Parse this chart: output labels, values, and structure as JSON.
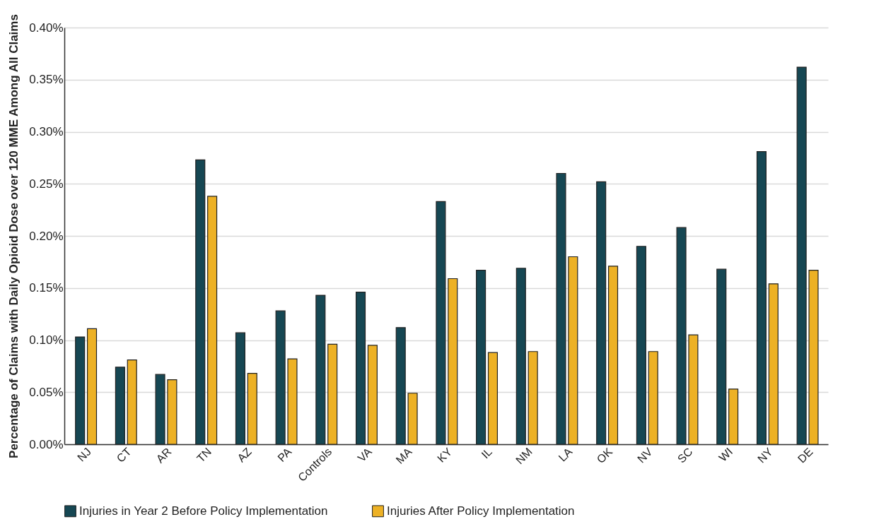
{
  "chart_data": {
    "type": "bar",
    "ylabel": "Percentage of Claims with Daily Opioid Dose over 120 MME Among All Claims",
    "categories": [
      "NJ",
      "CT",
      "AR",
      "TN",
      "AZ",
      "PA",
      "Controls",
      "VA",
      "MA",
      "KY",
      "IL",
      "NM",
      "LA",
      "OK",
      "NV",
      "SC",
      "WI",
      "NY",
      "DE"
    ],
    "series": [
      {
        "name": "Injuries in Year 2 Before Policy Implementation",
        "color": "#164753",
        "values": [
          0.103,
          0.074,
          0.067,
          0.273,
          0.107,
          0.128,
          0.143,
          0.146,
          0.112,
          0.233,
          0.167,
          0.169,
          0.26,
          0.252,
          0.19,
          0.208,
          0.168,
          0.281,
          0.362
        ]
      },
      {
        "name": "Injuries After Policy Implementation",
        "color": "#edb125",
        "values": [
          0.111,
          0.081,
          0.062,
          0.238,
          0.068,
          0.082,
          0.096,
          0.095,
          0.049,
          0.159,
          0.088,
          0.089,
          0.18,
          0.171,
          0.089,
          0.105,
          0.053,
          0.154,
          0.167
        ]
      }
    ],
    "ylim": [
      0,
      0.4
    ],
    "yticks": [
      {
        "value": 0,
        "label": "0.00%"
      },
      {
        "value": 0.05,
        "label": "0.05%"
      },
      {
        "value": 0.1,
        "label": "0.10%"
      },
      {
        "value": 0.15,
        "label": "0.15%"
      },
      {
        "value": 0.2,
        "label": "0.20%"
      },
      {
        "value": 0.25,
        "label": "0.25%"
      },
      {
        "value": 0.3,
        "label": "0.30%"
      },
      {
        "value": 0.35,
        "label": "0.35%"
      },
      {
        "value": 0.4,
        "label": "0.40%"
      }
    ],
    "grid": "y",
    "legend": "bottom"
  }
}
